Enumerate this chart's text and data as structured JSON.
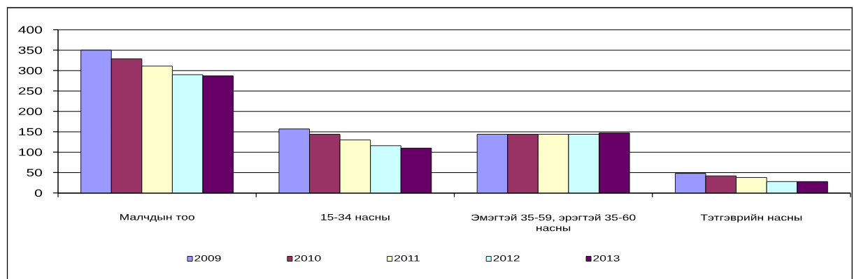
{
  "chart_data": {
    "type": "bar",
    "categories": [
      "Малчдын тоо",
      "15-34 насны",
      "Эмэгтэй 35-59, эрэгтэй 35-60 насны",
      "Тэтгэврийн насны"
    ],
    "series": [
      {
        "name": "2009",
        "color": "#9999ff",
        "values": [
          350,
          157,
          144,
          48
        ]
      },
      {
        "name": "2010",
        "color": "#993366",
        "values": [
          329,
          144,
          144,
          42
        ]
      },
      {
        "name": "2011",
        "color": "#ffffcc",
        "values": [
          311,
          130,
          144,
          38
        ]
      },
      {
        "name": "2012",
        "color": "#ccffff",
        "values": [
          290,
          116,
          144,
          28
        ]
      },
      {
        "name": "2013",
        "color": "#660066",
        "values": [
          287,
          110,
          147,
          28
        ]
      }
    ],
    "ylim": [
      0,
      400
    ],
    "yticks": [
      0,
      50,
      100,
      150,
      200,
      250,
      300,
      350,
      400
    ],
    "grid": "y",
    "legend": "bottom"
  }
}
